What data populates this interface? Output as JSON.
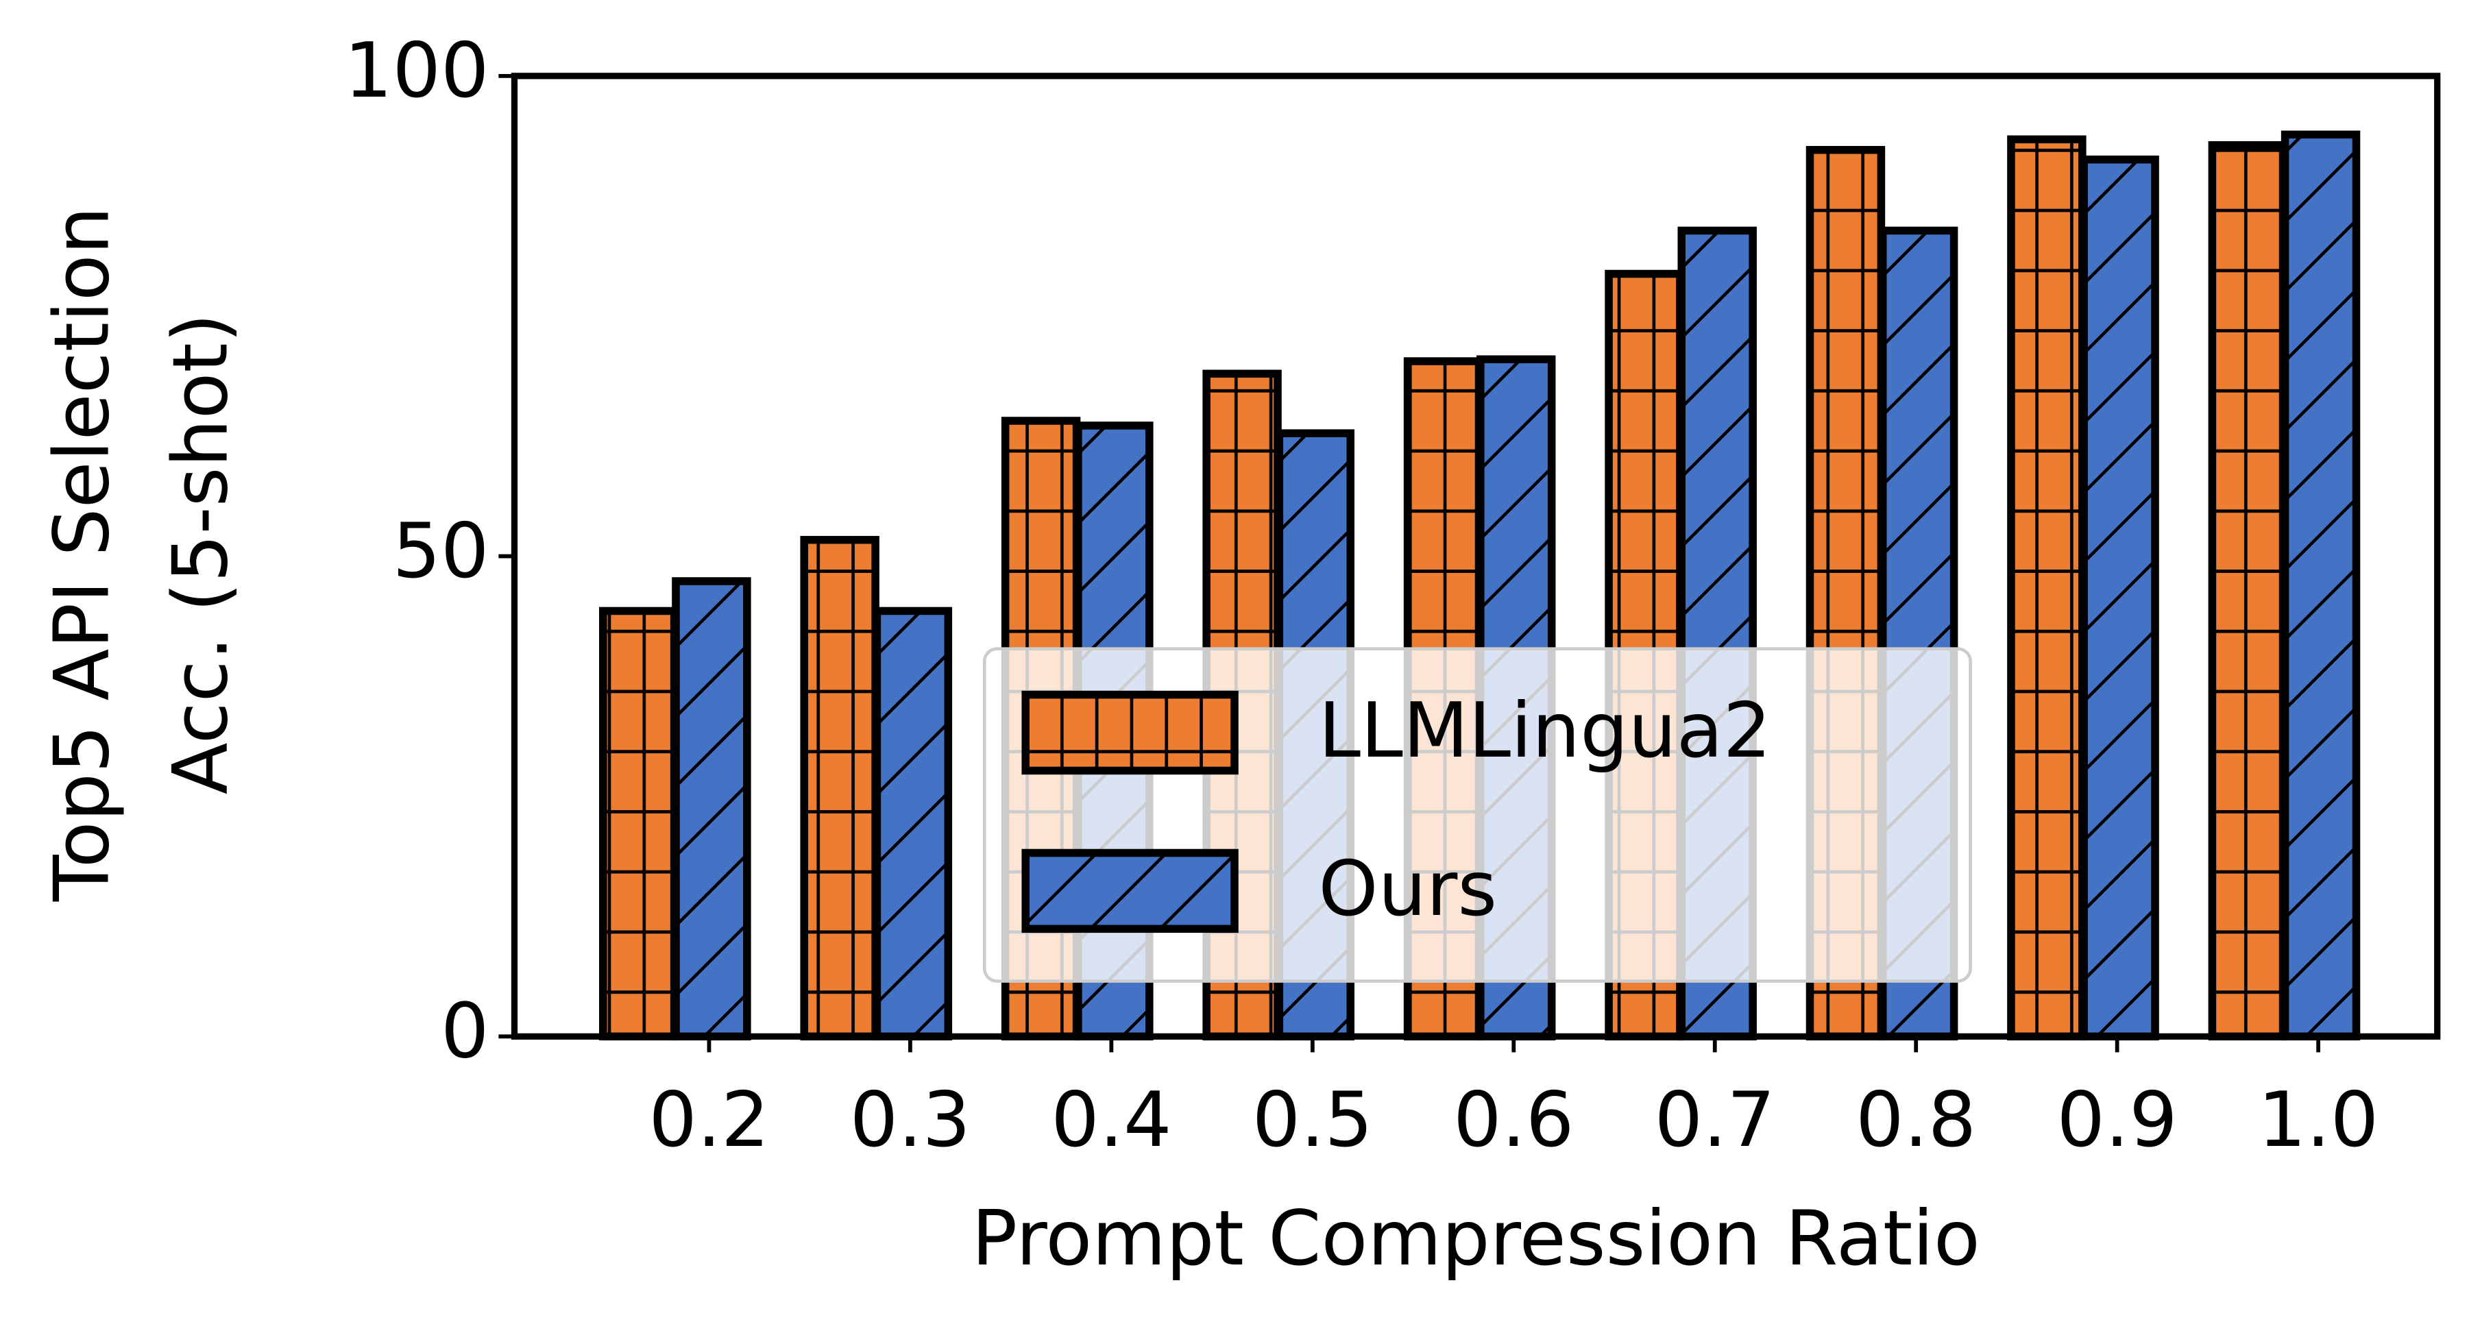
{
  "chart_data": {
    "type": "bar",
    "xlabel": "Prompt Compression Ratio",
    "ylabel": [
      "Top5 API Selection",
      "Acc. (5-shot)"
    ],
    "categories": [
      "0.2",
      "0.3",
      "0.4",
      "0.5",
      "0.6",
      "0.7",
      "0.8",
      "0.9",
      "1.0"
    ],
    "series": [
      {
        "name": "LLMLingua2",
        "color": "#ed7d31",
        "hatch": "+",
        "values": [
          44.3,
          51.7,
          64.1,
          69.0,
          70.3,
          79.4,
          92.3,
          93.4,
          92.8
        ]
      },
      {
        "name": "Ours",
        "color": "#4472c4",
        "hatch": "/",
        "values": [
          47.4,
          44.3,
          63.6,
          62.8,
          70.5,
          83.9,
          83.9,
          91.3,
          93.9
        ]
      }
    ],
    "ylim": [
      0,
      100
    ],
    "yticks": [
      0,
      50,
      100
    ],
    "legend": "lower right"
  }
}
